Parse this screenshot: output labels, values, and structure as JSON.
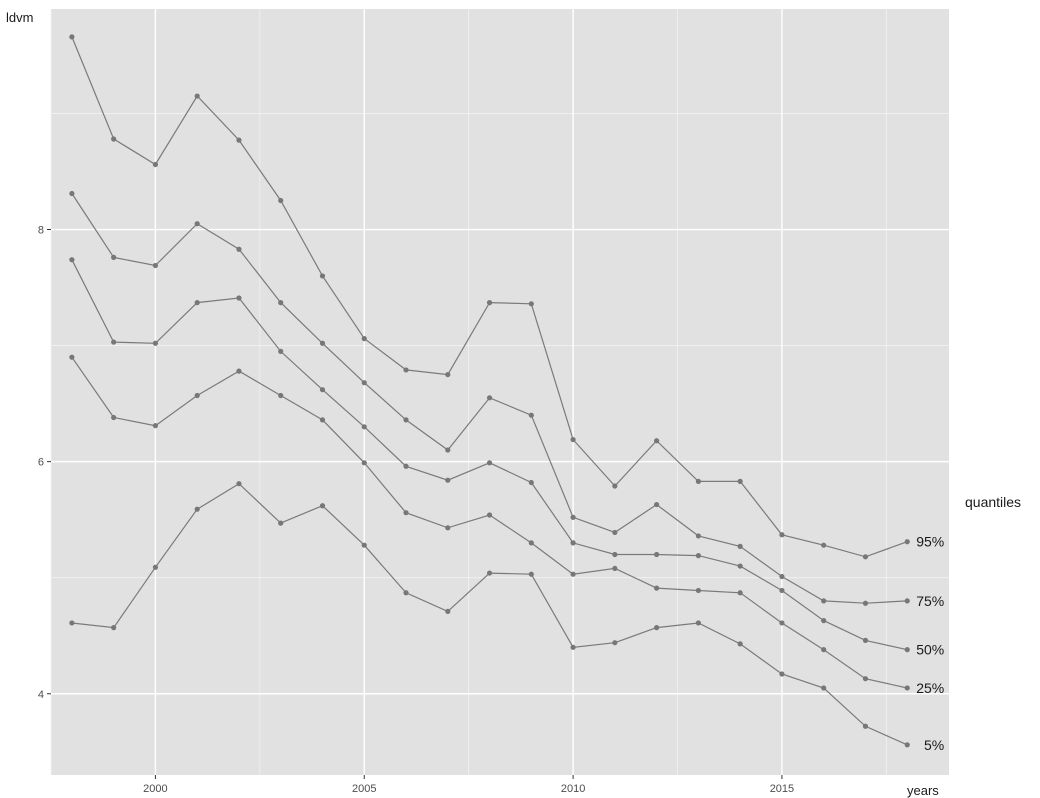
{
  "chart_data": {
    "type": "line",
    "title": "",
    "ylabel": "ldvm",
    "xlabel": "years",
    "legend_title": "quantiles",
    "xlim": [
      1997.5,
      2019.0
    ],
    "ylim": [
      3.3,
      9.9
    ],
    "x_ticks": [
      2000,
      2005,
      2010,
      2015
    ],
    "x_tick_labels": [
      "2000",
      "2005",
      "2010",
      "2015"
    ],
    "y_ticks": [
      4,
      6,
      8
    ],
    "y_tick_labels": [
      "4",
      "6",
      "8"
    ],
    "grid": true,
    "x": [
      1998,
      1999,
      2000,
      2001,
      2002,
      2003,
      2004,
      2005,
      2006,
      2007,
      2008,
      2009,
      2010,
      2011,
      2012,
      2013,
      2014,
      2015,
      2016,
      2017,
      2018
    ],
    "series": [
      {
        "name": "95%",
        "values": [
          9.66,
          8.78,
          8.56,
          9.15,
          8.77,
          8.25,
          7.6,
          7.06,
          6.79,
          6.75,
          7.37,
          7.36,
          6.19,
          5.79,
          6.18,
          5.83,
          5.83,
          5.37,
          5.28,
          5.18,
          5.31
        ]
      },
      {
        "name": "75%",
        "values": [
          8.31,
          7.76,
          7.69,
          8.05,
          7.83,
          7.37,
          7.02,
          6.68,
          6.36,
          6.1,
          6.55,
          6.4,
          5.52,
          5.39,
          5.63,
          5.36,
          5.27,
          5.01,
          4.8,
          4.78,
          4.8
        ]
      },
      {
        "name": "50%",
        "values": [
          7.74,
          7.03,
          7.02,
          7.37,
          7.41,
          6.95,
          6.62,
          6.3,
          5.96,
          5.84,
          5.99,
          5.82,
          5.3,
          5.2,
          5.2,
          5.19,
          5.1,
          4.89,
          4.63,
          4.46,
          4.38
        ]
      },
      {
        "name": "25%",
        "values": [
          6.9,
          6.38,
          6.31,
          6.57,
          6.78,
          6.57,
          6.36,
          5.99,
          5.56,
          5.43,
          5.54,
          5.3,
          5.03,
          5.08,
          4.91,
          4.89,
          4.87,
          4.61,
          4.38,
          4.13,
          4.05
        ]
      },
      {
        "name": "5%",
        "values": [
          4.61,
          4.57,
          5.09,
          5.59,
          5.81,
          5.47,
          5.62,
          5.28,
          4.87,
          4.71,
          5.04,
          5.03,
          4.4,
          4.44,
          4.57,
          4.61,
          4.43,
          4.17,
          4.05,
          3.72,
          3.56
        ]
      }
    ]
  }
}
